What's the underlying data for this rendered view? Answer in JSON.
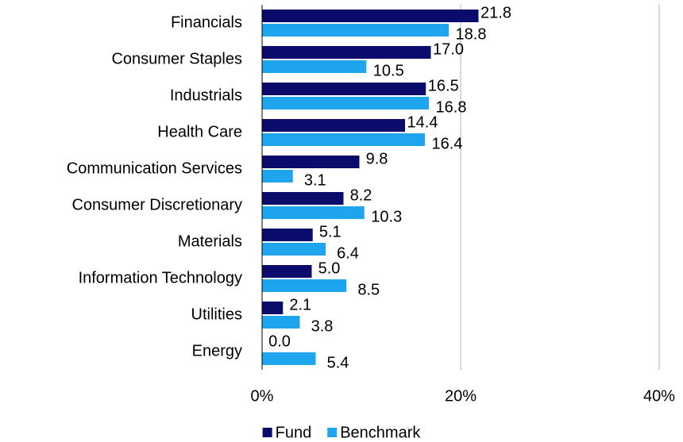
{
  "chart_data": {
    "type": "bar",
    "orientation": "horizontal",
    "categories": [
      "Financials",
      "Consumer Staples",
      "Industrials",
      "Health Care",
      "Communication Services",
      "Consumer Discretionary",
      "Materials",
      "Information Technology",
      "Utilities",
      "Energy"
    ],
    "series": [
      {
        "name": "Fund",
        "color": "#0b0b6b",
        "values": [
          21.8,
          17.0,
          16.5,
          14.4,
          9.8,
          8.2,
          5.1,
          5.0,
          2.1,
          0.0
        ],
        "value_labels": [
          "21.8",
          "17.0",
          "16.5",
          "14.4",
          "9.8",
          "8.2",
          "5.1",
          "5.0",
          "2.1",
          "0.0"
        ]
      },
      {
        "name": "Benchmark",
        "color": "#1ea5ee",
        "values": [
          18.8,
          10.5,
          16.8,
          16.4,
          3.1,
          10.3,
          6.4,
          8.5,
          3.8,
          5.4
        ],
        "value_labels": [
          "18.8",
          "10.5",
          "16.8",
          "16.4",
          "3.1",
          "10.3",
          "6.4",
          "8.5",
          "3.8",
          "5.4"
        ]
      }
    ],
    "xlim": [
      0,
      40
    ],
    "xticks": [
      {
        "value": 0,
        "label": "0%"
      },
      {
        "value": 20,
        "label": "20%"
      },
      {
        "value": 40,
        "label": "40%"
      }
    ],
    "grid": true,
    "legend": "bottom"
  }
}
